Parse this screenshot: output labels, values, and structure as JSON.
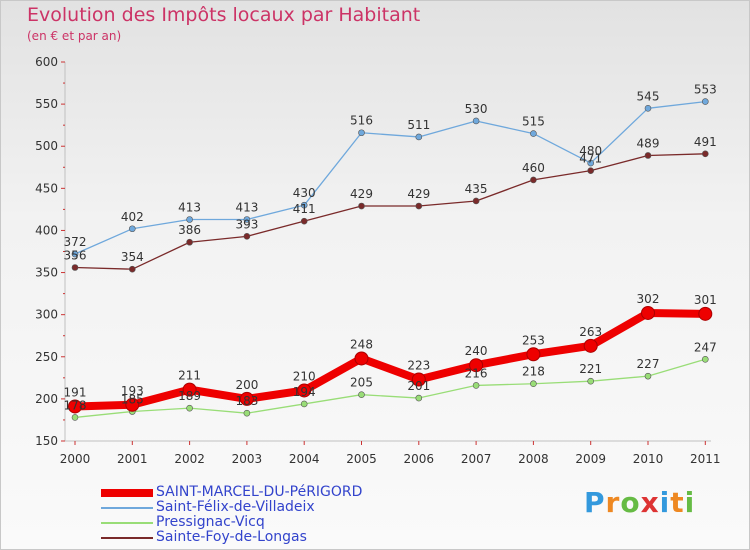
{
  "title": "Evolution des Impôts locaux par Habitant",
  "subtitle": "(en € et par an)",
  "logo": {
    "text": "Proxiti"
  },
  "chart_data": {
    "type": "line",
    "title": "Evolution des Impôts locaux par Habitant",
    "subtitle": "(en € et par an)",
    "x": [
      "2000",
      "2001",
      "2002",
      "2003",
      "2004",
      "2005",
      "2006",
      "2007",
      "2008",
      "2009",
      "2010",
      "2011"
    ],
    "ylim": [
      150,
      600
    ],
    "yticks": [
      150,
      200,
      250,
      300,
      350,
      400,
      450,
      500,
      550,
      600
    ],
    "grid": false,
    "legend_position": "bottom-left",
    "series": [
      {
        "name": "SAINT-MARCEL-DU-PéRIGORD",
        "color": "#ee0000",
        "values": [
          191,
          193,
          211,
          200,
          210,
          248,
          223,
          240,
          253,
          263,
          302,
          301
        ]
      },
      {
        "name": "Saint-Félix-de-Villadeix",
        "color": "#6fa8dc",
        "values": [
          372,
          402,
          413,
          413,
          430,
          516,
          511,
          530,
          515,
          480,
          545,
          553
        ]
      },
      {
        "name": "Pressignac-Vicq",
        "color": "#99dd77",
        "values": [
          178,
          185,
          189,
          183,
          194,
          205,
          201,
          216,
          218,
          221,
          227,
          247
        ]
      },
      {
        "name": "Sainte-Foy-de-Longas",
        "color": "#7a2a2a",
        "values": [
          356,
          354,
          386,
          393,
          411,
          429,
          429,
          435,
          460,
          471,
          489,
          491
        ]
      }
    ]
  }
}
